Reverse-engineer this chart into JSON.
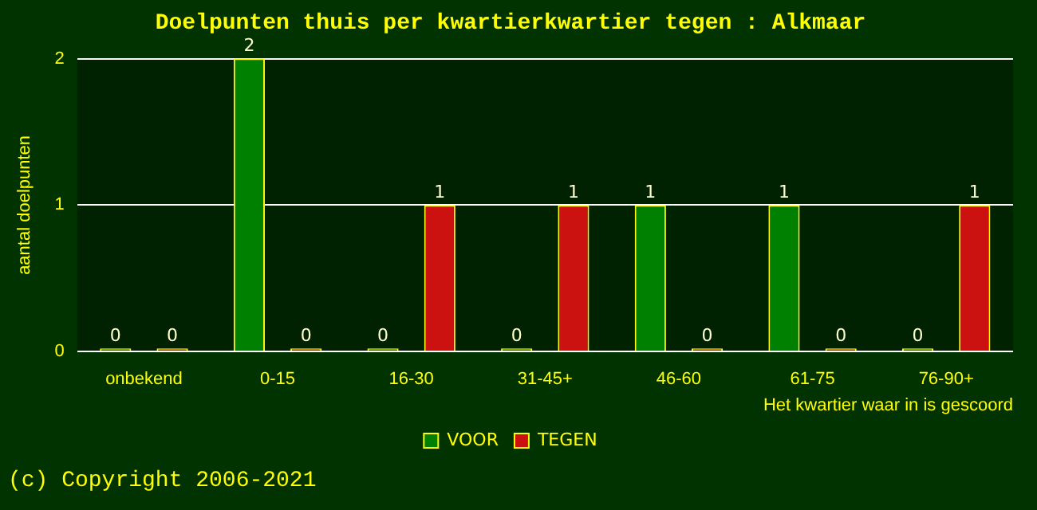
{
  "chart_data": {
    "type": "bar",
    "title": "Doelpunten thuis per kwartierkwartier tegen : Alkmaar",
    "xlabel": "Het kwartier waar in is gescoord",
    "ylabel": "aantal doelpunten",
    "categories": [
      "onbekend",
      "0-15",
      "16-30",
      "31-45+",
      "46-60",
      "61-75",
      "76-90+"
    ],
    "series": [
      {
        "name": "VOOR",
        "color": "#008000",
        "values": [
          0,
          2,
          0,
          0,
          1,
          1,
          0
        ]
      },
      {
        "name": "TEGEN",
        "color": "#cc1111",
        "values": [
          0,
          0,
          1,
          1,
          0,
          0,
          1
        ]
      }
    ],
    "ylim": [
      0,
      2
    ],
    "yticks": [
      0,
      1,
      2
    ],
    "grid": "y",
    "legend": "bottom",
    "data_labels": true,
    "annotations": [
      "(c) Copyright 2006-2021"
    ]
  }
}
